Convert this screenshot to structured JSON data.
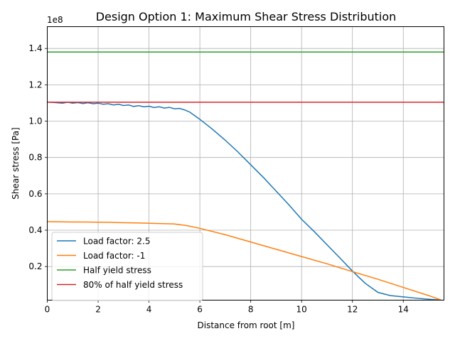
{
  "chart_data": {
    "type": "line",
    "title": "Design Option 1: Maximum Shear Stress Distribution",
    "xlabel": "Distance from root [m]",
    "ylabel": "Shear stress [Pa]",
    "y_offset_label": "1e8",
    "y_scale_factor": 100000000,
    "xlim": [
      0,
      15.6
    ],
    "ylim": [
      0.015,
      1.52
    ],
    "x_ticks": [
      0,
      2,
      4,
      6,
      8,
      10,
      12,
      14
    ],
    "x_tick_labels": [
      "0",
      "2",
      "4",
      "6",
      "8",
      "10",
      "12",
      "14"
    ],
    "y_ticks": [
      0.2,
      0.4,
      0.6,
      0.8,
      1.0,
      1.2,
      1.4
    ],
    "y_tick_labels": [
      "0.2",
      "0.4",
      "0.6",
      "0.8",
      "1.0",
      "1.2",
      "1.4"
    ],
    "grid": true,
    "legend_position": "lower-left",
    "series": [
      {
        "name": "Load factor: 2.5",
        "color": "#1f77b4",
        "x": [
          0,
          0.3,
          0.6,
          0.8,
          1.0,
          1.2,
          1.4,
          1.6,
          1.8,
          2.0,
          2.2,
          2.4,
          2.6,
          2.8,
          3.0,
          3.2,
          3.4,
          3.6,
          3.8,
          4.0,
          4.2,
          4.4,
          4.6,
          4.8,
          5.0,
          5.2,
          5.4,
          5.6,
          6.0,
          6.5,
          7.0,
          7.5,
          8.0,
          8.5,
          9.0,
          9.5,
          10.0,
          10.5,
          11.0,
          11.5,
          12.0,
          12.5,
          13.0,
          13.5,
          14.0,
          14.5,
          15.0,
          15.5
        ],
        "values": [
          1.105,
          1.102,
          1.099,
          1.104,
          1.099,
          1.102,
          1.097,
          1.101,
          1.096,
          1.099,
          1.093,
          1.096,
          1.089,
          1.093,
          1.086,
          1.089,
          1.081,
          1.085,
          1.079,
          1.082,
          1.075,
          1.079,
          1.072,
          1.076,
          1.068,
          1.07,
          1.062,
          1.05,
          1.01,
          0.955,
          0.895,
          0.83,
          0.76,
          0.69,
          0.615,
          0.54,
          0.46,
          0.392,
          0.32,
          0.248,
          0.175,
          0.108,
          0.058,
          0.04,
          0.033,
          0.026,
          0.02,
          0.015
        ]
      },
      {
        "name": "Load factor: -1",
        "color": "#ff7f0e",
        "x": [
          0,
          0.5,
          1.0,
          1.5,
          2.0,
          2.5,
          3.0,
          3.5,
          4.0,
          4.5,
          5.0,
          5.5,
          6.0,
          7.0,
          8.0,
          9.0,
          10.0,
          11.0,
          12.0,
          13.0,
          14.0,
          15.0,
          15.5
        ],
        "values": [
          0.447,
          0.446,
          0.445,
          0.445,
          0.444,
          0.443,
          0.441,
          0.44,
          0.438,
          0.436,
          0.434,
          0.425,
          0.41,
          0.375,
          0.335,
          0.295,
          0.255,
          0.215,
          0.172,
          0.13,
          0.085,
          0.04,
          0.015
        ]
      },
      {
        "name": "Half yield stress",
        "color": "#2ca02c",
        "x": [
          0,
          15.6
        ],
        "values": [
          1.38,
          1.38
        ]
      },
      {
        "name": "80% of half yield stress",
        "color": "#d62728",
        "x": [
          0,
          15.6
        ],
        "values": [
          1.104,
          1.104
        ]
      }
    ]
  }
}
